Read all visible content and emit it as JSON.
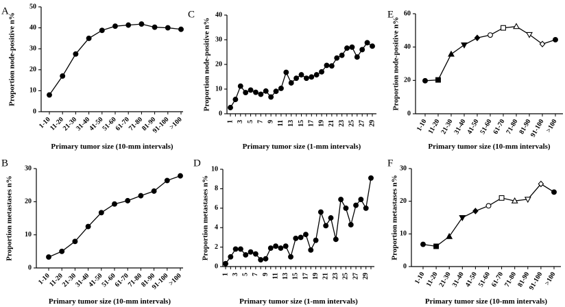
{
  "chart_data": [
    {
      "panel": "A",
      "type": "line",
      "xlabel": "Primary tumor size (10-mm intervals)",
      "ylabel": "Proportion node-positive n%",
      "categories": [
        "1-10",
        "11-20",
        "21-30",
        "31-40",
        "41-50",
        "51-60",
        "61-70",
        "71-80",
        "81-90",
        "91-100",
        ">100"
      ],
      "values": [
        8,
        17,
        27.5,
        35,
        38.8,
        40.8,
        41.3,
        41.8,
        40.3,
        40,
        39.3
      ],
      "markers": [
        "circle",
        "circle",
        "circle",
        "circle",
        "circle",
        "circle",
        "circle",
        "circle",
        "circle",
        "circle",
        "circle"
      ],
      "ylim": [
        0,
        50
      ],
      "yticks": [
        "0",
        "10",
        "20",
        "30",
        "40",
        "50"
      ]
    },
    {
      "panel": "B",
      "type": "line",
      "xlabel": "Primary tumor size (10-mm intervals)",
      "ylabel": "Proportion metastases n%",
      "categories": [
        "1-10",
        "11-20",
        "21-30",
        "31-40",
        "41-50",
        "51-60",
        "61-70",
        "71-80",
        "81-90",
        "91-100",
        ">100"
      ],
      "values": [
        3.3,
        5,
        8,
        12.5,
        16.7,
        19.3,
        20.3,
        21.8,
        23.2,
        26.4,
        27.8
      ],
      "markers": [
        "circle",
        "circle",
        "circle",
        "circle",
        "circle",
        "circle",
        "circle",
        "circle",
        "circle",
        "circle",
        "circle"
      ],
      "ylim": [
        0,
        30
      ],
      "yticks": [
        "0",
        "10",
        "20",
        "30"
      ]
    },
    {
      "panel": "C",
      "type": "line",
      "xlabel": "Primary tumor size (1-mm intervals)",
      "ylabel": "Proportion node-positive n%",
      "categories": [
        "1",
        "2",
        "3",
        "4",
        "5",
        "6",
        "7",
        "8",
        "9",
        "10",
        "11",
        "12",
        "13",
        "14",
        "15",
        "16",
        "17",
        "18",
        "19",
        "20",
        "21",
        "22",
        "23",
        "24",
        "25",
        "26",
        "27",
        "28",
        "29"
      ],
      "tick_labels": [
        "1",
        "",
        "3",
        "",
        "5",
        "",
        "7",
        "",
        "9",
        "",
        "11",
        "",
        "13",
        "",
        "15",
        "",
        "17",
        "",
        "19",
        "",
        "21",
        "",
        "23",
        "",
        "25",
        "",
        "27",
        "",
        "29"
      ],
      "values": [
        2.5,
        5.8,
        11.2,
        8.6,
        9.6,
        8.7,
        7.9,
        9.2,
        6.8,
        9.1,
        10.3,
        16.8,
        12.5,
        14.4,
        15.8,
        14.4,
        14.9,
        15.8,
        17.0,
        19.6,
        19.4,
        22.6,
        23.7,
        26.6,
        27.0,
        23.0,
        26.0,
        28.8,
        27.4
      ],
      "markers": "circle",
      "ylim": [
        0,
        40
      ],
      "yticks": [
        "0",
        "10",
        "20",
        "30",
        "40"
      ]
    },
    {
      "panel": "D",
      "type": "line",
      "xlabel": "Primary tumor size (1-mm intervals)",
      "ylabel": "Proportion metastases n%",
      "categories": [
        "1",
        "2",
        "3",
        "4",
        "5",
        "6",
        "7",
        "8",
        "9",
        "10",
        "11",
        "12",
        "13",
        "14",
        "15",
        "16",
        "17",
        "18",
        "19",
        "20",
        "21",
        "22",
        "23",
        "24",
        "25",
        "26",
        "27",
        "28",
        "29",
        "30"
      ],
      "tick_labels": [
        "1",
        "",
        "3",
        "",
        "5",
        "",
        "7",
        "",
        "9",
        "",
        "11",
        "",
        "13",
        "",
        "15",
        "",
        "17",
        "",
        "19",
        "",
        "21",
        "",
        "23",
        "",
        "25",
        "",
        "27",
        "",
        "29",
        ""
      ],
      "values": [
        0.3,
        1.0,
        1.8,
        1.8,
        1.2,
        1.5,
        1.3,
        0.7,
        0.8,
        1.9,
        2.1,
        1.9,
        2.1,
        1.0,
        2.9,
        3.0,
        3.3,
        1.7,
        2.7,
        5.6,
        4.2,
        5.0,
        2.8,
        6.9,
        6.0,
        4.3,
        6.3,
        6.9,
        6.0,
        9.1
      ],
      "markers": "circle",
      "ylim": [
        0,
        10
      ],
      "yticks": [
        "0",
        "2",
        "4",
        "6",
        "8",
        "10"
      ]
    },
    {
      "panel": "E",
      "type": "line",
      "xlabel": "Primary tumor size (10-mm intervals)",
      "ylabel": "Proportion node-positive n%",
      "categories": [
        "1-10",
        "11-20",
        "21-30",
        "31-40",
        "41-50",
        "51-60",
        "61-70",
        "71-80",
        "81-90",
        "91-100",
        ">100"
      ],
      "values": [
        19.8,
        20.3,
        35.7,
        41.3,
        45.5,
        47.2,
        51.5,
        52.3,
        47.5,
        41.8,
        44.4
      ],
      "markers": [
        "circle",
        "square",
        "triangle",
        "triangle-down",
        "diamond",
        "circle-open",
        "square-open",
        "triangle-open",
        "triangle-down-open",
        "diamond-open",
        "circle"
      ],
      "ylim": [
        0,
        60
      ],
      "yticks": [
        "0",
        "20",
        "40",
        "60"
      ]
    },
    {
      "panel": "F",
      "type": "line",
      "xlabel": "Primary tumor size (10-mm intervals)",
      "ylabel": "Proportion metastases n%",
      "categories": [
        "1-10",
        "11-20",
        "21-30",
        "31-40",
        "41-50",
        "51-60",
        "61-70",
        "71-80",
        "81-90",
        "91-100",
        ">100"
      ],
      "values": [
        6.8,
        6.2,
        9.2,
        15.0,
        17.0,
        18.6,
        21.0,
        20.1,
        20.6,
        25.3,
        22.8
      ],
      "markers": [
        "circle",
        "square",
        "triangle",
        "triangle-down",
        "diamond",
        "circle-open",
        "square-open",
        "triangle-open",
        "triangle-down-open",
        "diamond-open",
        "circle"
      ],
      "ylim": [
        0,
        30
      ],
      "yticks": [
        "0",
        "10",
        "20",
        "30"
      ]
    }
  ]
}
